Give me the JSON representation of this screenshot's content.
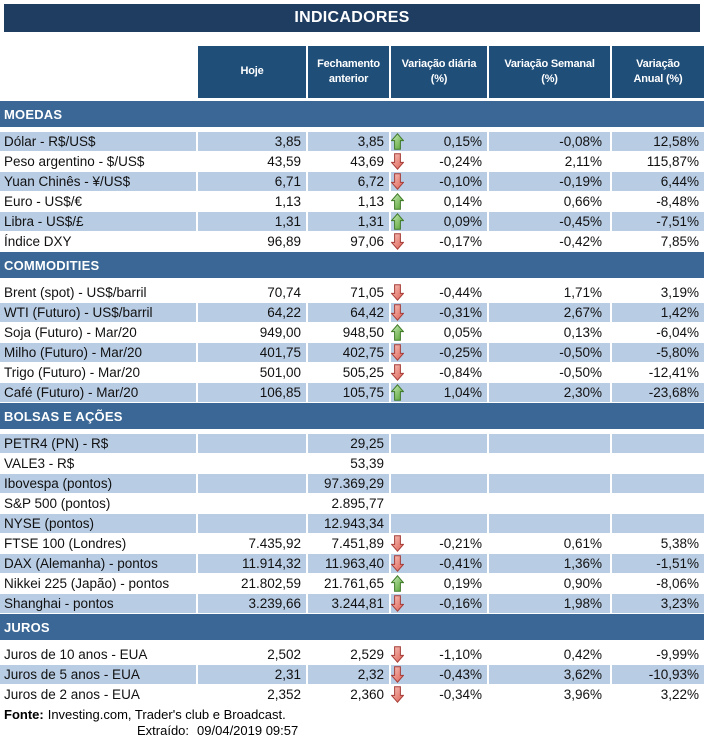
{
  "report": {
    "title": "INDICADORES"
  },
  "table": {
    "columns": [
      {
        "id": "hoje",
        "label": "Hoje"
      },
      {
        "id": "fechamento-anterior",
        "label": "Fechamento\nanterior"
      },
      {
        "id": "variacao-diaria",
        "label": "Variação diária\n(%)"
      },
      {
        "id": "variacao-semanal",
        "label": "Variação Semanal\n(%)"
      },
      {
        "id": "variacao-anual",
        "label": "Variação\nAnual (%)"
      }
    ],
    "sections": [
      {
        "id": "moedas",
        "name": "MOEDAS",
        "first_row_shaded": true,
        "rows": [
          {
            "label": "Dólar - R$/US$",
            "hoje": "3,85",
            "fechamento": "3,85",
            "arrow": "up",
            "var_diaria": "0,15%",
            "var_semanal": "-0,08%",
            "var_anual": "12,58%"
          },
          {
            "label": "Peso argentino - $/US$",
            "hoje": "43,59",
            "fechamento": "43,69",
            "arrow": "down",
            "var_diaria": "-0,24%",
            "var_semanal": "2,11%",
            "var_anual": "115,87%"
          },
          {
            "label": "Yuan Chinês - ¥/US$",
            "hoje": "6,71",
            "fechamento": "6,72",
            "arrow": "down",
            "var_diaria": "-0,10%",
            "var_semanal": "-0,19%",
            "var_anual": "6,44%"
          },
          {
            "label": "Euro - US$/€",
            "hoje": "1,13",
            "fechamento": "1,13",
            "arrow": "up",
            "var_diaria": "0,14%",
            "var_semanal": "0,66%",
            "var_anual": "-8,48%"
          },
          {
            "label": "Libra - US$/£",
            "hoje": "1,31",
            "fechamento": "1,31",
            "arrow": "up",
            "var_diaria": "0,09%",
            "var_semanal": "-0,45%",
            "var_anual": "-7,51%"
          },
          {
            "label": "Índice DXY",
            "hoje": "96,89",
            "fechamento": "97,06",
            "arrow": "down",
            "var_diaria": "-0,17%",
            "var_semanal": "-0,42%",
            "var_anual": "7,85%"
          }
        ]
      },
      {
        "id": "commodities",
        "name": "COMMODITIES",
        "first_row_shaded": false,
        "rows": [
          {
            "label": "Brent (spot) - US$/barril",
            "hoje": "70,74",
            "fechamento": "71,05",
            "arrow": "down",
            "var_diaria": "-0,44%",
            "var_semanal": "1,71%",
            "var_anual": "3,19%"
          },
          {
            "label": "WTI (Futuro) - US$/barril",
            "hoje": "64,22",
            "fechamento": "64,42",
            "arrow": "down",
            "var_diaria": "-0,31%",
            "var_semanal": "2,67%",
            "var_anual": "1,42%"
          },
          {
            "label": "Soja (Futuro) - Mar/20",
            "hoje": "949,00",
            "fechamento": "948,50",
            "arrow": "up",
            "var_diaria": "0,05%",
            "var_semanal": "0,13%",
            "var_anual": "-6,04%"
          },
          {
            "label": "Milho (Futuro) - Mar/20",
            "hoje": "401,75",
            "fechamento": "402,75",
            "arrow": "down",
            "var_diaria": "-0,25%",
            "var_semanal": "-0,50%",
            "var_anual": "-5,80%"
          },
          {
            "label": "Trigo (Futuro) - Mar/20",
            "hoje": "501,00",
            "fechamento": "505,25",
            "arrow": "down",
            "var_diaria": "-0,84%",
            "var_semanal": "-0,50%",
            "var_anual": "-12,41%"
          },
          {
            "label": "Café (Futuro) - Mar/20",
            "hoje": "106,85",
            "fechamento": "105,75",
            "arrow": "up",
            "var_diaria": "1,04%",
            "var_semanal": "2,30%",
            "var_anual": "-23,68%"
          }
        ]
      },
      {
        "id": "bolsas-e-acoes",
        "name": "BOLSAS E AÇÕES",
        "first_row_shaded": true,
        "rows": [
          {
            "label": "PETR4 (PN) - R$",
            "hoje": "",
            "fechamento": "29,25",
            "arrow": "",
            "var_diaria": "",
            "var_semanal": "",
            "var_anual": ""
          },
          {
            "label": "VALE3 - R$",
            "hoje": "",
            "fechamento": "53,39",
            "arrow": "",
            "var_diaria": "",
            "var_semanal": "",
            "var_anual": ""
          },
          {
            "label": "Ibovespa (pontos)",
            "hoje": "",
            "fechamento": "97.369,29",
            "arrow": "",
            "var_diaria": "",
            "var_semanal": "",
            "var_anual": ""
          },
          {
            "label": "S&P 500 (pontos)",
            "hoje": "",
            "fechamento": "2.895,77",
            "arrow": "",
            "var_diaria": "",
            "var_semanal": "",
            "var_anual": ""
          },
          {
            "label": "NYSE (pontos)",
            "hoje": "",
            "fechamento": "12.943,34",
            "arrow": "",
            "var_diaria": "",
            "var_semanal": "",
            "var_anual": ""
          },
          {
            "label": "FTSE 100 (Londres)",
            "hoje": "7.435,92",
            "fechamento": "7.451,89",
            "arrow": "down",
            "var_diaria": "-0,21%",
            "var_semanal": "0,61%",
            "var_anual": "5,38%"
          },
          {
            "label": "DAX (Alemanha) - pontos",
            "hoje": "11.914,32",
            "fechamento": "11.963,40",
            "arrow": "down",
            "var_diaria": "-0,41%",
            "var_semanal": "1,36%",
            "var_anual": "-1,51%"
          },
          {
            "label": "Nikkei 225 (Japão) - pontos",
            "hoje": "21.802,59",
            "fechamento": "21.761,65",
            "arrow": "up",
            "var_diaria": "0,19%",
            "var_semanal": "0,90%",
            "var_anual": "-8,06%"
          },
          {
            "label": "Shanghai - pontos",
            "hoje": "3.239,66",
            "fechamento": "3.244,81",
            "arrow": "down",
            "var_diaria": "-0,16%",
            "var_semanal": "1,98%",
            "var_anual": "3,23%"
          }
        ]
      },
      {
        "id": "juros",
        "name": "JUROS",
        "first_row_shaded": false,
        "rows": [
          {
            "label": "Juros de 10 anos - EUA",
            "hoje": "2,502",
            "fechamento": "2,529",
            "arrow": "down",
            "var_diaria": "-1,10%",
            "var_semanal": "0,42%",
            "var_anual": "-9,99%"
          },
          {
            "label": "Juros de 5 anos - EUA",
            "hoje": "2,31",
            "fechamento": "2,32",
            "arrow": "down",
            "var_diaria": "-0,43%",
            "var_semanal": "3,62%",
            "var_anual": "-10,93%"
          },
          {
            "label": "Juros de 2 anos - EUA",
            "hoje": "2,352",
            "fechamento": "2,360",
            "arrow": "down",
            "var_diaria": "-0,34%",
            "var_semanal": "3,96%",
            "var_anual": "3,22%"
          }
        ]
      }
    ]
  },
  "footer": {
    "source_label": "Fonte:",
    "source_text": "Investing.com, Trader's club e Broadcast.",
    "extracted_label": "Extraído:",
    "extracted_value": "09/04/2019 09:57"
  },
  "colors": {
    "title_bar": "#1F3C61",
    "column_header": "#1F4E79",
    "section_band": "#3A6795",
    "row_shaded": "#B8CCE4",
    "arrow_up_light": "#C9ECBC",
    "arrow_up_dark": "#55A02E",
    "arrow_up_stroke": "#3E7A28",
    "arrow_down_light": "#F6C5BC",
    "arrow_down_dark": "#DE5D52",
    "arrow_down_stroke": "#A63D38"
  },
  "icons": {
    "up": "arrow-up-icon",
    "down": "arrow-down-icon"
  }
}
